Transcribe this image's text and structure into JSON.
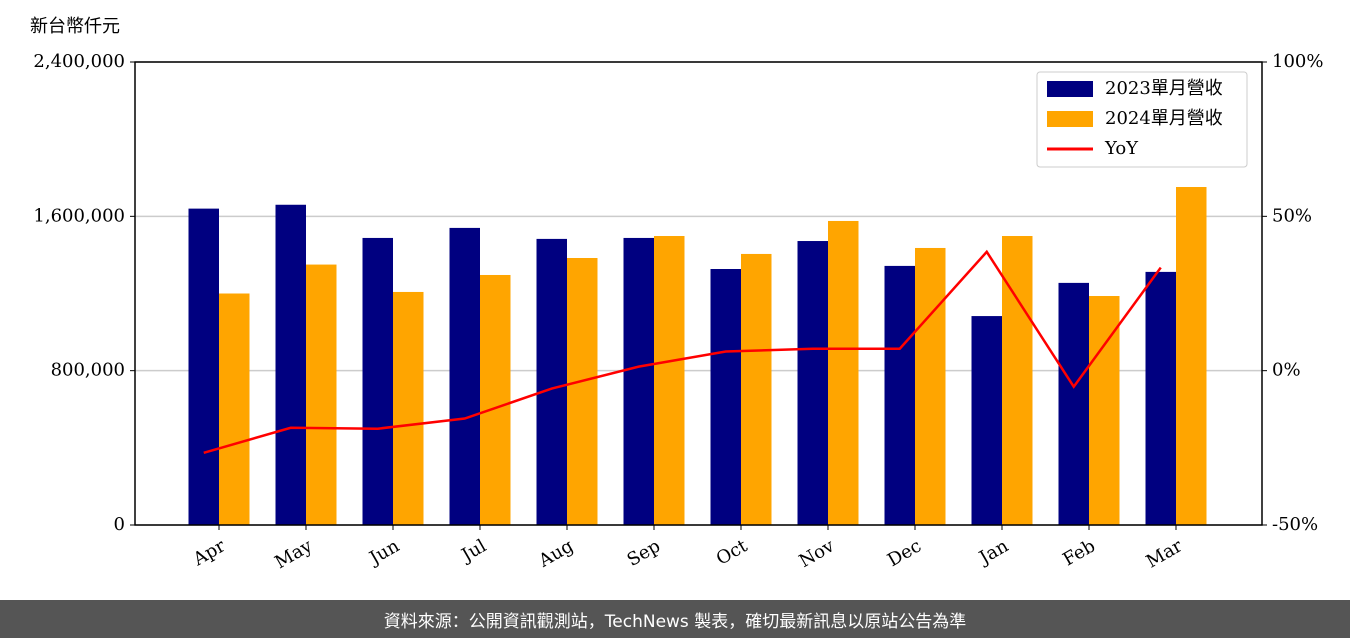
{
  "chart_data": {
    "type": "bar",
    "y_label": "新台幣仟元",
    "categories": [
      "Apr",
      "May",
      "Jun",
      "Jul",
      "Aug",
      "Sep",
      "Oct",
      "Nov",
      "Dec",
      "Jan",
      "Feb",
      "Mar"
    ],
    "series": [
      {
        "name": "2023單月營收",
        "color": "#000080",
        "values": [
          1640000,
          1660000,
          1488000,
          1540000,
          1483000,
          1488000,
          1327000,
          1472000,
          1343000,
          1083000,
          1255000,
          1312000
        ]
      },
      {
        "name": "2024單月營收",
        "color": "#ffa500",
        "values": [
          1200000,
          1350000,
          1208000,
          1296000,
          1384000,
          1498000,
          1405000,
          1576000,
          1436000,
          1498000,
          1187000,
          1752000
        ]
      },
      {
        "name": "YoY",
        "color": "#ff0000",
        "type": "line",
        "axis": "y2",
        "values": [
          -26.6,
          -18.5,
          -18.8,
          -15.5,
          -5.8,
          1.3,
          6.2,
          7.1,
          7.1,
          38.5,
          -5.2,
          33.4
        ]
      }
    ],
    "ylim": [
      0,
      2400000
    ],
    "yticks": [
      {
        "value": 0,
        "label": "0"
      },
      {
        "value": 800000,
        "label": "800,000"
      },
      {
        "value": 1600000,
        "label": "1,600,000"
      },
      {
        "value": 2400000,
        "label": "2,400,000"
      }
    ],
    "y2lim": [
      -50,
      100
    ],
    "y2ticks": [
      {
        "value": -50,
        "label": "-50%"
      },
      {
        "value": 0,
        "label": "0%"
      },
      {
        "value": 50,
        "label": "50%"
      },
      {
        "value": 100,
        "label": "100%"
      }
    ],
    "grid": true,
    "legend": "upper right"
  },
  "footer": "資料來源：公開資訊觀測站，TechNews 製表，確切最新訊息以原站公告為準"
}
